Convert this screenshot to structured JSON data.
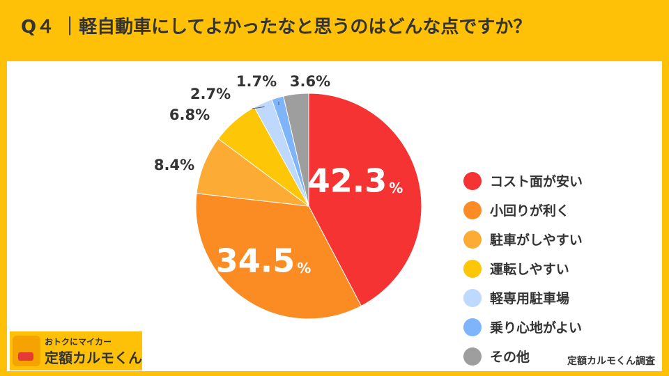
{
  "title": "Q４ ｜軽自動車にしてよかったなと思うのはどんな点ですか？",
  "chart_data": {
    "type": "pie",
    "title": "Q４ ｜軽自動車にしてよかったなと思うのはどんな点ですか？",
    "unit": "%",
    "slices": [
      {
        "label": "コスト面が安い",
        "value": 42.3,
        "color": "#f53333"
      },
      {
        "label": "小回りが利く",
        "value": 34.5,
        "color": "#fb8c24"
      },
      {
        "label": "駐車がしやすい",
        "value": 8.4,
        "color": "#fcab34"
      },
      {
        "label": "運転しやすい",
        "value": 6.8,
        "color": "#fdc606"
      },
      {
        "label": "軽専用駐車場",
        "value": 2.7,
        "color": "#bfd8fd"
      },
      {
        "label": "乗り心地がよい",
        "value": 1.7,
        "color": "#7eb4fa"
      },
      {
        "label": "その他",
        "value": 3.6,
        "color": "#9e9e9e"
      }
    ],
    "value_labels": [
      "42.3",
      "34.5",
      "8.4%",
      "6.8%",
      "2.7%",
      "1.7%",
      "3.6%"
    ],
    "legend_position": "right"
  },
  "logo": {
    "tagline": "おトクにマイカー",
    "name": "定額カルモくん"
  },
  "credit": "定額カルモくん調査"
}
